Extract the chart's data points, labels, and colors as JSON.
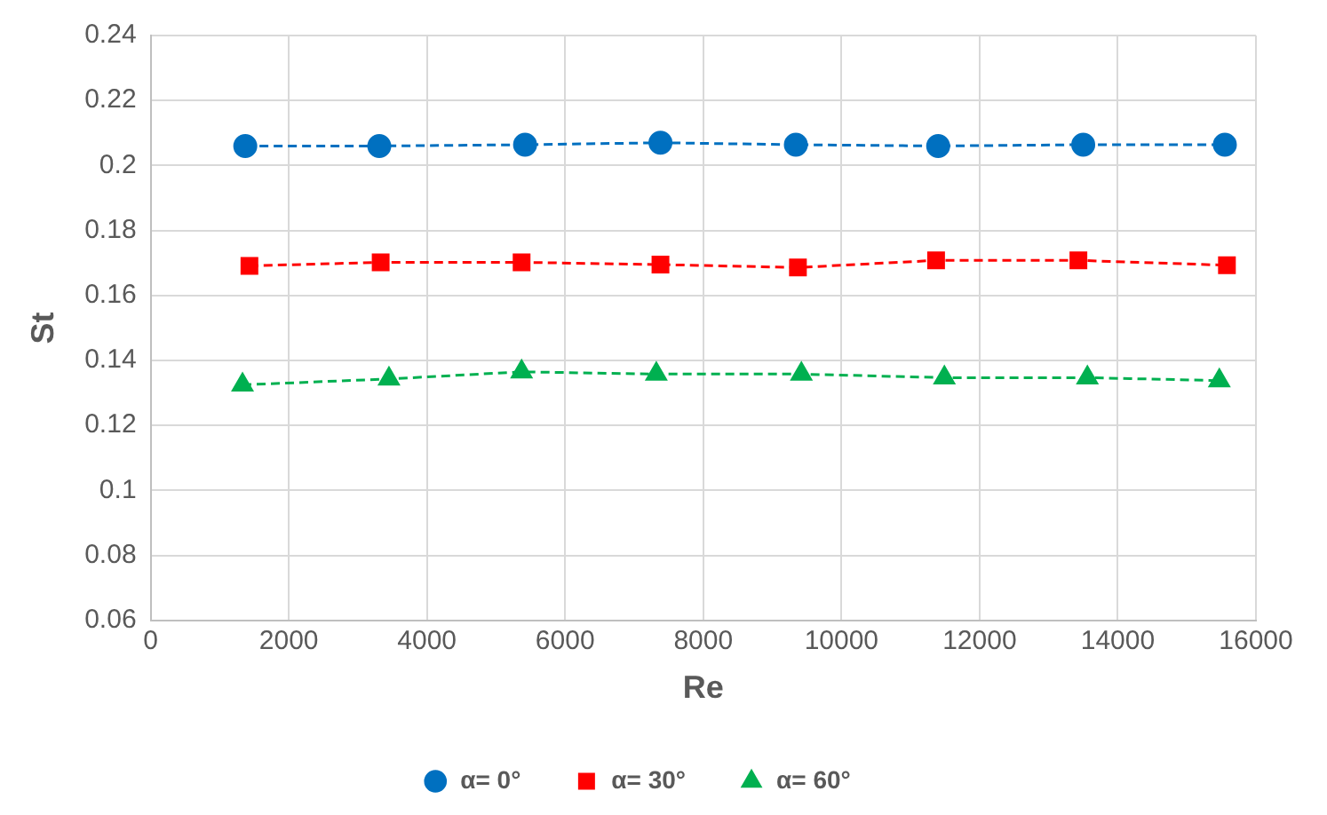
{
  "chart_data": {
    "type": "line",
    "xlabel": "Re",
    "ylabel": "St",
    "xlim": [
      0,
      16000
    ],
    "xticks": [
      0,
      2000,
      4000,
      6000,
      8000,
      10000,
      12000,
      14000,
      16000
    ],
    "ylim": [
      0.06,
      0.24
    ],
    "yticks": [
      0.06,
      0.08,
      0.1,
      0.12,
      0.14,
      0.16,
      0.18,
      0.2,
      0.22,
      0.24
    ],
    "grid": true,
    "legend": "bottom",
    "line_style": "dashed",
    "series": [
      {
        "name": "α= 0°",
        "color": "#0070c0",
        "marker": "circle",
        "x": [
          1370,
          3310,
          5420,
          7380,
          9340,
          11400,
          13500,
          15550
        ],
        "values": [
          0.206,
          0.206,
          0.2064,
          0.207,
          0.2064,
          0.206,
          0.2064,
          0.2064
        ]
      },
      {
        "name": "α= 30°",
        "color": "#ff0000",
        "marker": "square",
        "x": [
          1430,
          3330,
          5370,
          7380,
          9370,
          11370,
          13430,
          15580
        ],
        "values": [
          0.1691,
          0.1702,
          0.1702,
          0.1695,
          0.1686,
          0.1708,
          0.1708,
          0.1693
        ]
      },
      {
        "name": "α= 60°",
        "color": "#00b050",
        "marker": "triangle",
        "x": [
          1330,
          3450,
          5370,
          7320,
          9420,
          11490,
          13560,
          15470
        ],
        "values": [
          0.1325,
          0.1343,
          0.1365,
          0.1358,
          0.1358,
          0.1347,
          0.1347,
          0.1338
        ]
      }
    ]
  }
}
